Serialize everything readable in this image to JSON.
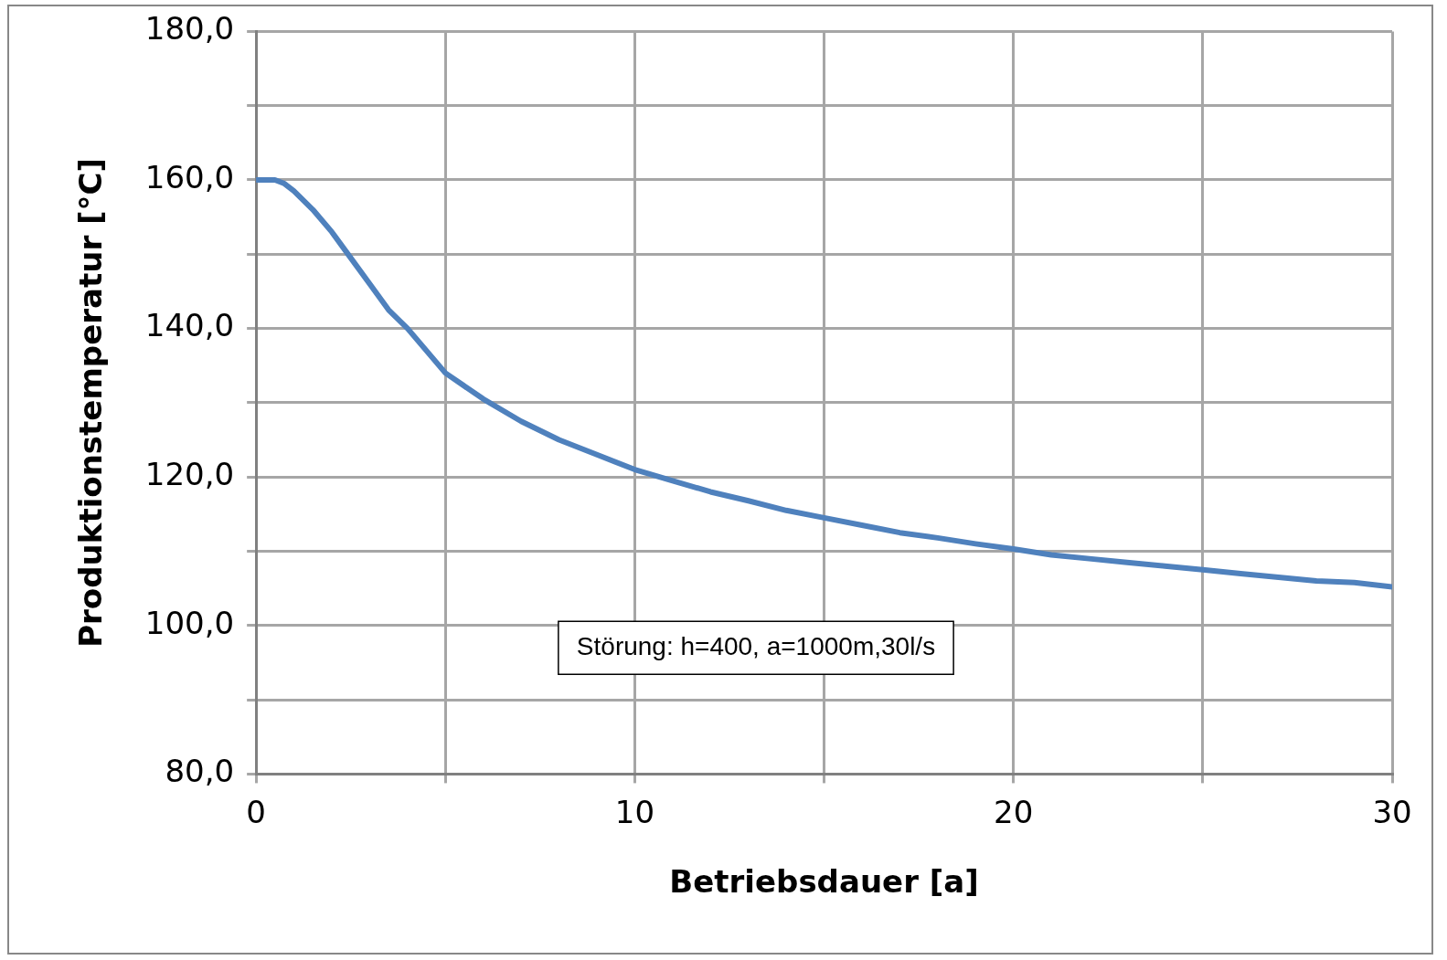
{
  "chart_data": {
    "type": "line",
    "xlabel": "Betriebsdauer [a]",
    "ylabel": "Produktionstemperatur [°C]",
    "x": [
      0,
      0.5,
      0.75,
      1,
      1.5,
      2,
      2.5,
      3,
      3.5,
      4,
      5,
      6,
      7,
      8,
      9,
      10,
      11,
      12,
      13,
      14,
      15,
      16,
      17,
      18,
      19,
      20,
      21,
      22,
      23,
      24,
      25,
      26,
      27,
      28,
      29,
      30
    ],
    "series": [
      {
        "color": "#4f81bd",
        "values": [
          160,
          160,
          159.5,
          158.5,
          156,
          153,
          149.5,
          146,
          142.5,
          140,
          134,
          130.5,
          127.5,
          125,
          123,
          121,
          119.5,
          118,
          116.8,
          115.5,
          114.5,
          113.5,
          112.5,
          111.8,
          111,
          110.3,
          109.5,
          109,
          108.5,
          108,
          107.5,
          107,
          106.5,
          106,
          105.8,
          105.2
        ]
      }
    ],
    "xlim": [
      0,
      30
    ],
    "xticks": [
      0,
      {
        "value": 5,
        "label": null
      },
      10,
      {
        "value": 15,
        "label": null
      },
      20,
      {
        "value": 25,
        "label": null
      },
      30
    ],
    "ylim": [
      80,
      180
    ],
    "yticks": [
      {
        "value": 80,
        "label": "80,0"
      },
      {
        "value": 90,
        "label": null
      },
      {
        "value": 100,
        "label": "100,0"
      },
      {
        "value": 110,
        "label": null
      },
      {
        "value": 120,
        "label": "120,0"
      },
      {
        "value": 130,
        "label": null
      },
      {
        "value": 140,
        "label": "140,0"
      },
      {
        "value": 150,
        "label": null
      },
      {
        "value": 160,
        "label": "160,0"
      },
      {
        "value": 170,
        "label": null
      },
      {
        "value": 180,
        "label": "180,0"
      }
    ],
    "annotations": [
      "Störung: h=400, a=1000m,30l/s"
    ],
    "grid": true,
    "legend": false,
    "marker": "none",
    "line_style": "solid"
  }
}
